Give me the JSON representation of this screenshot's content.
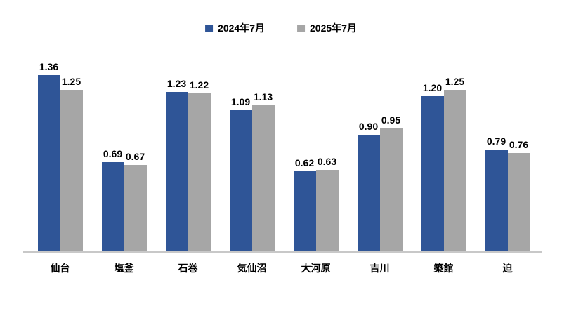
{
  "chart_data": {
    "type": "bar",
    "categories": [
      "仙台",
      "塩釜",
      "石巻",
      "気仙沼",
      "大河原",
      "吉川",
      "築館",
      "迫"
    ],
    "series": [
      {
        "name": "2024年7月",
        "color": "#2F5597",
        "values": [
          1.36,
          0.69,
          1.23,
          1.09,
          0.62,
          0.9,
          1.2,
          0.79
        ]
      },
      {
        "name": "2025年7月",
        "color": "#A6A6A6",
        "values": [
          1.25,
          0.67,
          1.22,
          1.13,
          0.63,
          0.95,
          1.25,
          0.76
        ]
      }
    ],
    "title": "",
    "xlabel": "",
    "ylabel": "",
    "ylim": [
      0,
      1.5
    ],
    "grid": false,
    "legend_position": "top",
    "value_labels": true,
    "value_label_decimals": 2,
    "axis_line_color": "#C8C8C8",
    "text_color": "#000000",
    "background_color": "#FFFFFF"
  }
}
